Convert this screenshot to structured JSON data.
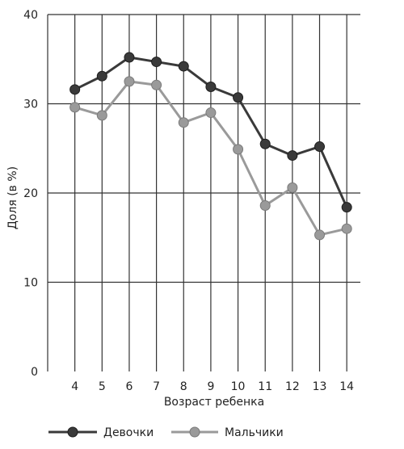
{
  "chart_data": {
    "type": "line",
    "title": "",
    "xlabel": "Возраст ребенка",
    "ylabel": "Доля (в %)",
    "x": [
      4,
      5,
      6,
      7,
      8,
      9,
      10,
      11,
      12,
      13,
      14
    ],
    "xlim": [
      3,
      14.5
    ],
    "ylim": [
      0,
      40
    ],
    "yticks": [
      0,
      10,
      20,
      30,
      40
    ],
    "grid": true,
    "legend": "bottom",
    "series": [
      {
        "name": "Девочки",
        "color": "#3a3a3a",
        "values": [
          31.6,
          33.1,
          35.2,
          34.7,
          34.2,
          31.9,
          30.7,
          25.5,
          24.2,
          25.2,
          18.4
        ]
      },
      {
        "name": "Мальчики",
        "color": "#9a9a9a",
        "values": [
          29.6,
          28.7,
          32.5,
          32.1,
          27.9,
          29.0,
          24.9,
          18.6,
          20.6,
          15.3,
          16.0
        ]
      }
    ]
  }
}
